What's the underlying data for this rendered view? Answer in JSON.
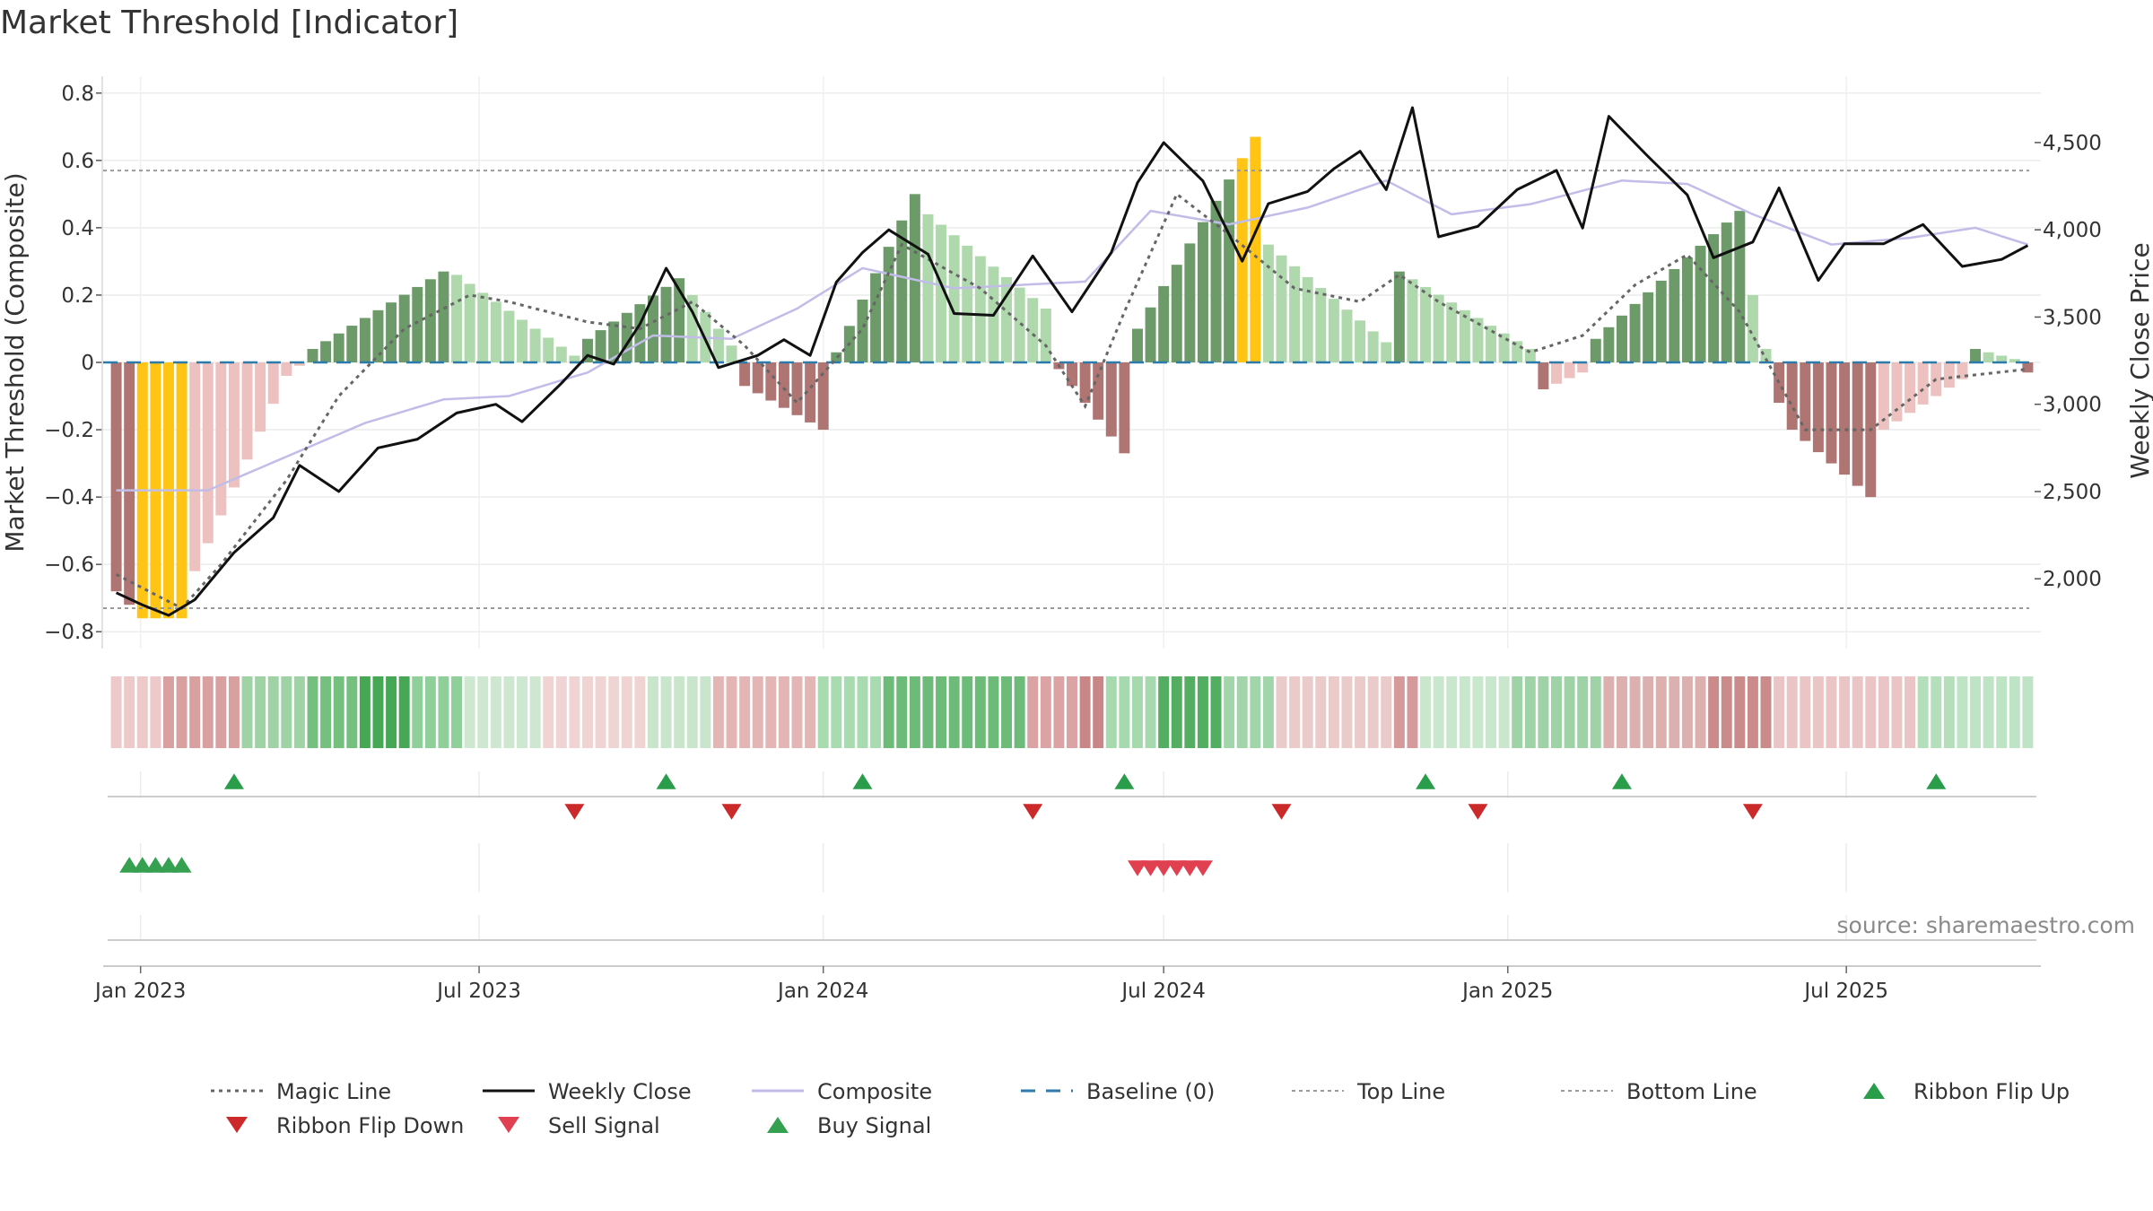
{
  "chart_data": {
    "type": "bar",
    "title": "Market Threshold [Indicator]",
    "ylabel_left": "Market Threshold (Composite)",
    "ylabel_right": "Weekly Close Price",
    "source": "source: sharemaestro.com",
    "x_ticks": [
      {
        "label": "Jan 2023",
        "date": "2023-01-01"
      },
      {
        "label": "Jul 2023",
        "date": "2023-07-01"
      },
      {
        "label": "Jan 2024",
        "date": "2024-01-01"
      },
      {
        "label": "Jul 2024",
        "date": "2024-07-01"
      },
      {
        "label": "Jan 2025",
        "date": "2025-01-01"
      },
      {
        "label": "Jul 2025",
        "date": "2025-07-01"
      }
    ],
    "x_range": [
      "2022-12-12",
      "2025-10-13"
    ],
    "y_left": {
      "range": [
        -0.85,
        0.85
      ],
      "ticks": [
        {
          "v": 0.8,
          "label": "0.8"
        },
        {
          "v": 0.6,
          "label": "0.6"
        },
        {
          "v": 0.4,
          "label": "0.4"
        },
        {
          "v": 0.2,
          "label": "0.2"
        },
        {
          "v": 0,
          "label": "0"
        },
        {
          "v": -0.2,
          "label": "−0.2"
        },
        {
          "v": -0.4,
          "label": "−0.4"
        },
        {
          "v": -0.6,
          "label": "−0.6"
        },
        {
          "v": -0.8,
          "label": "−0.8"
        }
      ]
    },
    "y_right": {
      "range": [
        1600,
        4880
      ],
      "ticks": [
        {
          "v": 2000,
          "label": "2,000"
        },
        {
          "v": 2500,
          "label": "2,500"
        },
        {
          "v": 3000,
          "label": "3,000"
        },
        {
          "v": 3500,
          "label": "3,500"
        },
        {
          "v": 4000,
          "label": "4,000"
        },
        {
          "v": 4500,
          "label": "4,500"
        }
      ]
    },
    "top_line": 0.57,
    "bottom_line": -0.73,
    "composite_keypoints": [
      [
        "2022-12-19",
        -0.38
      ],
      [
        "2023-02-06",
        -0.38
      ],
      [
        "2023-03-20",
        -0.28
      ],
      [
        "2023-05-01",
        -0.18
      ],
      [
        "2023-06-12",
        -0.11
      ],
      [
        "2023-07-17",
        -0.1
      ],
      [
        "2023-08-28",
        -0.03
      ],
      [
        "2023-10-02",
        0.08
      ],
      [
        "2023-11-13",
        0.07
      ],
      [
        "2023-12-18",
        0.16
      ],
      [
        "2024-01-22",
        0.28
      ],
      [
        "2024-03-11",
        0.22
      ],
      [
        "2024-04-15",
        0.23
      ],
      [
        "2024-05-20",
        0.24
      ],
      [
        "2024-06-24",
        0.45
      ],
      [
        "2024-08-05",
        0.41
      ],
      [
        "2024-09-16",
        0.46
      ],
      [
        "2024-10-28",
        0.54
      ],
      [
        "2024-12-02",
        0.44
      ],
      [
        "2025-01-13",
        0.47
      ],
      [
        "2025-03-03",
        0.54
      ],
      [
        "2025-04-07",
        0.53
      ],
      [
        "2025-05-12",
        0.44
      ],
      [
        "2025-06-23",
        0.35
      ],
      [
        "2025-08-04",
        0.37
      ],
      [
        "2025-09-08",
        0.4
      ],
      [
        "2025-10-06",
        0.35
      ]
    ],
    "magic_keypoints": [
      [
        "2022-12-19",
        -0.63
      ],
      [
        "2023-01-23",
        -0.73
      ],
      [
        "2023-02-13",
        -0.6
      ],
      [
        "2023-03-20",
        -0.35
      ],
      [
        "2023-04-17",
        -0.1
      ],
      [
        "2023-05-22",
        0.1
      ],
      [
        "2023-06-26",
        0.2
      ],
      [
        "2023-07-17",
        0.18
      ],
      [
        "2023-08-28",
        0.12
      ],
      [
        "2023-09-25",
        0.1
      ],
      [
        "2023-10-23",
        0.18
      ],
      [
        "2023-11-20",
        0.05
      ],
      [
        "2023-12-18",
        -0.12
      ],
      [
        "2024-01-22",
        0.1
      ],
      [
        "2024-02-12",
        0.35
      ],
      [
        "2024-03-25",
        0.22
      ],
      [
        "2024-04-29",
        0.05
      ],
      [
        "2024-05-20",
        -0.13
      ],
      [
        "2024-06-10",
        0.15
      ],
      [
        "2024-07-08",
        0.5
      ],
      [
        "2024-08-05",
        0.38
      ],
      [
        "2024-09-09",
        0.22
      ],
      [
        "2024-10-14",
        0.18
      ],
      [
        "2024-11-04",
        0.26
      ],
      [
        "2024-11-25",
        0.18
      ],
      [
        "2025-01-13",
        0.03
      ],
      [
        "2025-02-10",
        0.08
      ],
      [
        "2025-03-10",
        0.23
      ],
      [
        "2025-04-07",
        0.32
      ],
      [
        "2025-05-05",
        0.15
      ],
      [
        "2025-06-09",
        -0.2
      ],
      [
        "2025-07-14",
        -0.2
      ],
      [
        "2025-08-18",
        -0.05
      ],
      [
        "2025-10-06",
        -0.02
      ]
    ],
    "close_keypoints": [
      [
        "2022-12-19",
        1920
      ],
      [
        "2023-01-02",
        1850
      ],
      [
        "2023-01-16",
        1790
      ],
      [
        "2023-01-30",
        1880
      ],
      [
        "2023-02-20",
        2150
      ],
      [
        "2023-03-13",
        2350
      ],
      [
        "2023-03-27",
        2650
      ],
      [
        "2023-04-17",
        2500
      ],
      [
        "2023-05-08",
        2750
      ],
      [
        "2023-05-29",
        2800
      ],
      [
        "2023-06-19",
        2950
      ],
      [
        "2023-07-10",
        3000
      ],
      [
        "2023-07-24",
        2900
      ],
      [
        "2023-08-14",
        3120
      ],
      [
        "2023-08-28",
        3280
      ],
      [
        "2023-09-11",
        3230
      ],
      [
        "2023-09-25",
        3460
      ],
      [
        "2023-10-09",
        3780
      ],
      [
        "2023-10-23",
        3530
      ],
      [
        "2023-11-06",
        3210
      ],
      [
        "2023-11-27",
        3280
      ],
      [
        "2023-12-11",
        3370
      ],
      [
        "2023-12-25",
        3280
      ],
      [
        "2024-01-08",
        3700
      ],
      [
        "2024-01-22",
        3870
      ],
      [
        "2024-02-05",
        4000
      ],
      [
        "2024-02-26",
        3860
      ],
      [
        "2024-03-11",
        3520
      ],
      [
        "2024-04-01",
        3510
      ],
      [
        "2024-04-22",
        3850
      ],
      [
        "2024-05-13",
        3530
      ],
      [
        "2024-06-03",
        3870
      ],
      [
        "2024-06-17",
        4270
      ],
      [
        "2024-07-01",
        4500
      ],
      [
        "2024-07-22",
        4280
      ],
      [
        "2024-08-12",
        3820
      ],
      [
        "2024-08-26",
        4150
      ],
      [
        "2024-09-16",
        4220
      ],
      [
        "2024-09-30",
        4350
      ],
      [
        "2024-10-14",
        4450
      ],
      [
        "2024-10-28",
        4230
      ],
      [
        "2024-11-11",
        4700
      ],
      [
        "2024-11-25",
        3960
      ],
      [
        "2024-12-16",
        4020
      ],
      [
        "2025-01-06",
        4230
      ],
      [
        "2025-01-27",
        4340
      ],
      [
        "2025-02-10",
        4010
      ],
      [
        "2025-02-24",
        4650
      ],
      [
        "2025-03-17",
        4420
      ],
      [
        "2025-04-07",
        4200
      ],
      [
        "2025-04-21",
        3840
      ],
      [
        "2025-05-12",
        3930
      ],
      [
        "2025-05-26",
        4240
      ],
      [
        "2025-06-16",
        3710
      ],
      [
        "2025-06-30",
        3920
      ],
      [
        "2025-07-21",
        3920
      ],
      [
        "2025-08-11",
        4030
      ],
      [
        "2025-09-01",
        3790
      ],
      [
        "2025-09-22",
        3830
      ],
      [
        "2025-10-06",
        3910
      ]
    ],
    "bars_segments": [
      [
        "2022-12-19",
        -0.68,
        -0.72
      ],
      [
        "2023-01-02",
        -0.76,
        -0.76
      ],
      [
        "2023-01-30",
        -0.62,
        -0.04
      ],
      [
        "2023-03-27",
        -0.01,
        -0.01
      ],
      [
        "2023-04-03",
        0.04,
        0.27
      ],
      [
        "2023-06-19",
        0.26,
        0.02
      ],
      [
        "2023-08-28",
        0.07,
        0.25
      ],
      [
        "2023-10-23",
        0.2,
        0.05
      ],
      [
        "2023-11-20",
        -0.07,
        -0.2
      ],
      [
        "2024-01-08",
        0.03,
        0.5
      ],
      [
        "2024-02-26",
        0.44,
        0.16
      ],
      [
        "2024-05-06",
        -0.02,
        -0.27
      ],
      [
        "2024-06-17",
        0.1,
        0.67
      ],
      [
        "2024-08-26",
        0.35,
        0.06
      ],
      [
        "2024-11-04",
        0.27,
        0.04
      ],
      [
        "2025-01-20",
        -0.08,
        -0.03
      ],
      [
        "2025-02-17",
        0.07,
        0.45
      ],
      [
        "2025-05-12",
        0.2,
        -0.12
      ],
      [
        "2025-06-02",
        -0.2,
        -0.4
      ],
      [
        "2025-07-21",
        -0.2,
        -0.05
      ],
      [
        "2025-09-08",
        0.04,
        0.01
      ],
      [
        "2025-10-06",
        -0.03,
        -0.03
      ]
    ],
    "ribbon_colors": [
      "#eec9c9",
      "#d9a0a0",
      "#9fd3a6",
      "#76c07f",
      "#46a855",
      "#8fcf99",
      "#cde7d1",
      "#f0d4d4",
      "#c9e6cd",
      "#e4b5b5",
      "#a9dbb1",
      "#6dbb79",
      "#dba3a3",
      "#c88686",
      "#a7d9ae",
      "#54ae62",
      "#a2d6aa",
      "#ebcaca",
      "#d79a9a",
      "#c8e7cc",
      "#9fd2a6",
      "#ddb0b0",
      "#cb8b8b",
      "#ebc5c5",
      "#b4dfba",
      "#bfe3c5"
    ],
    "ribbon_changes": [
      "2022-12-19",
      "2023-01-16",
      "2023-02-27",
      "2023-04-03",
      "2023-05-01",
      "2023-05-29",
      "2023-06-26",
      "2023-08-07",
      "2023-10-02",
      "2023-11-06",
      "2024-01-01",
      "2024-02-05",
      "2024-04-22",
      "2024-05-20",
      "2024-06-03",
      "2024-07-01",
      "2024-08-05",
      "2024-09-02",
      "2024-11-04",
      "2024-11-18",
      "2025-01-06",
      "2025-02-24",
      "2025-04-21",
      "2025-05-26",
      "2025-08-11",
      "2025-09-01",
      "2025-10-13"
    ],
    "ribbon_flip_up": [
      "2023-02-20",
      "2023-10-09",
      "2024-01-22",
      "2024-06-10",
      "2024-11-18",
      "2025-03-03",
      "2025-08-18"
    ],
    "ribbon_flip_down": [
      "2023-08-21",
      "2023-11-13",
      "2024-04-22",
      "2024-09-02",
      "2024-12-16",
      "2025-05-12"
    ],
    "buy_signals": [
      "2022-12-26",
      "2023-01-02",
      "2023-01-09",
      "2023-01-16",
      "2023-01-23"
    ],
    "sell_signals": [
      "2024-06-17",
      "2024-06-24",
      "2024-07-01",
      "2024-07-08",
      "2024-07-15",
      "2024-07-22"
    ],
    "colors": {
      "magic": "#666666",
      "close": "#111111",
      "composite": "#c1bde8",
      "baseline": "#2c7bab",
      "threshold": "#9a9a9a",
      "flip_up": "#2a9d4b",
      "flip_down": "#cc2a2a",
      "buy": "#35a04f",
      "sell": "#e04050",
      "extreme": "#ffc414",
      "pos_strong": "#6c9b69",
      "pos_weak": "#afd8ad",
      "neg_strong": "#ae7573",
      "neg_weak": "#ecc1bf"
    },
    "legend": [
      {
        "label": "Magic Line",
        "type": "dotted",
        "color": "#666666"
      },
      {
        "label": "Weekly Close",
        "type": "solid",
        "color": "#111111"
      },
      {
        "label": "Composite",
        "type": "solid-light",
        "color": "#c1bde8"
      },
      {
        "label": "Baseline (0)",
        "type": "dash",
        "color": "#2c7bab"
      },
      {
        "label": "Top Line",
        "type": "dotted-light",
        "color": "#9a9a9a"
      },
      {
        "label": "Bottom Line",
        "type": "dotted-light",
        "color": "#9a9a9a"
      },
      {
        "label": "Ribbon Flip Up",
        "type": "tri-up",
        "color": "#2a9d4b"
      },
      {
        "label": "Ribbon Flip Down",
        "type": "tri-down",
        "color": "#cc2a2a"
      },
      {
        "label": "Sell Signal",
        "type": "tri-down",
        "color": "#e04050"
      },
      {
        "label": "Buy Signal",
        "type": "tri-up",
        "color": "#35a04f"
      }
    ]
  }
}
